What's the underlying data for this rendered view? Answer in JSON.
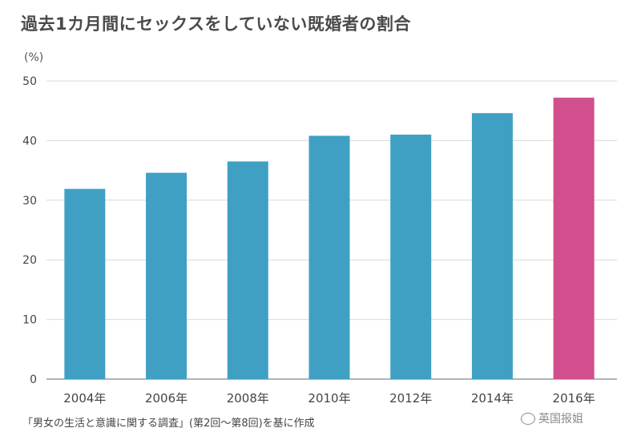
{
  "chart_data": {
    "type": "bar",
    "title": "過去1カ月間にセックスをしていない既婚者の割合",
    "ylabel": "(%)",
    "xlabel": "",
    "categories": [
      "2004年",
      "2006年",
      "2008年",
      "2010年",
      "2012年",
      "2014年",
      "2016年"
    ],
    "values": [
      31.9,
      34.6,
      36.5,
      40.8,
      41.0,
      44.6,
      47.2
    ],
    "ylim": [
      0,
      50
    ],
    "yticks": [
      0,
      10,
      20,
      30,
      40,
      50
    ],
    "grid": true,
    "bar_colors": [
      "#3fa0c4",
      "#3fa0c4",
      "#3fa0c4",
      "#3fa0c4",
      "#3fa0c4",
      "#3fa0c4",
      "#d14f8d"
    ]
  },
  "source": "「男女の生活と意識に関する調査」(第2回〜第8回)を基に作成",
  "watermark": "英国报姐",
  "colors": {
    "bar": "#3fa0c4",
    "highlight": "#d14f8d",
    "grid": "#d9d9d9",
    "axis": "#888888"
  }
}
